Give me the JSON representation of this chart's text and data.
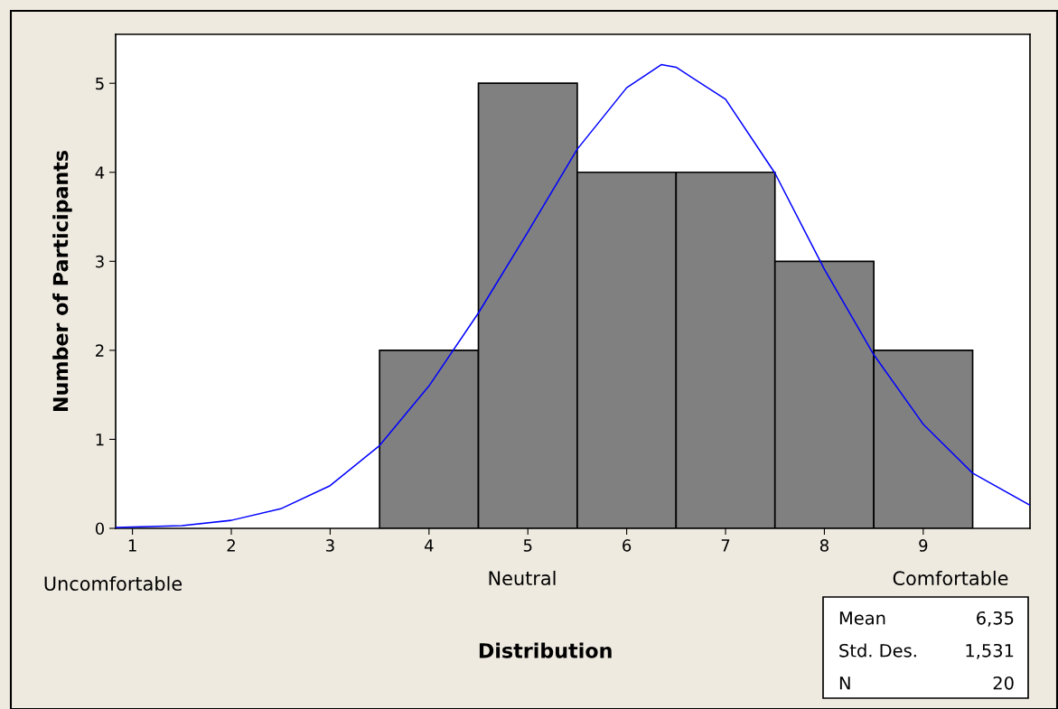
{
  "chart_data": {
    "type": "histogram",
    "xlabel": "Distribution",
    "ylabel": "Number of Participants",
    "bins": [
      3.5,
      4.5,
      5.5,
      6.5,
      7.5,
      8.5,
      9.5
    ],
    "values": [
      2,
      5,
      4,
      4,
      3,
      2
    ],
    "color": "#808080",
    "series": [
      {
        "type": "line",
        "color": "#0000ff",
        "x": [
          0.83,
          1.5,
          2,
          2.5,
          3,
          3.5,
          4,
          4.5,
          5,
          5.5,
          6,
          6.35,
          6.5,
          7,
          7.5,
          8,
          8.5,
          9,
          9.5,
          10.08
        ],
        "values": [
          0.01,
          0.03,
          0.09,
          0.22,
          0.48,
          0.93,
          1.6,
          2.42,
          3.33,
          4.26,
          4.95,
          5.21,
          5.18,
          4.82,
          3.99,
          2.91,
          1.95,
          1.17,
          0.62,
          0.26
        ]
      }
    ],
    "xlim": [
      0.83,
      10.08
    ],
    "ylim": [
      0,
      5.55
    ],
    "xticks": [
      1,
      2,
      3,
      4,
      5,
      6,
      7,
      8,
      9
    ],
    "yticks": [
      0,
      1,
      2,
      3,
      4,
      5
    ],
    "annotations": [
      "Uncomfortable",
      "Neutral",
      "Comfortable",
      "Mean",
      "6,35",
      "Std. Des.",
      "1,531",
      "N",
      "20"
    ],
    "grid": false,
    "legend": false
  }
}
